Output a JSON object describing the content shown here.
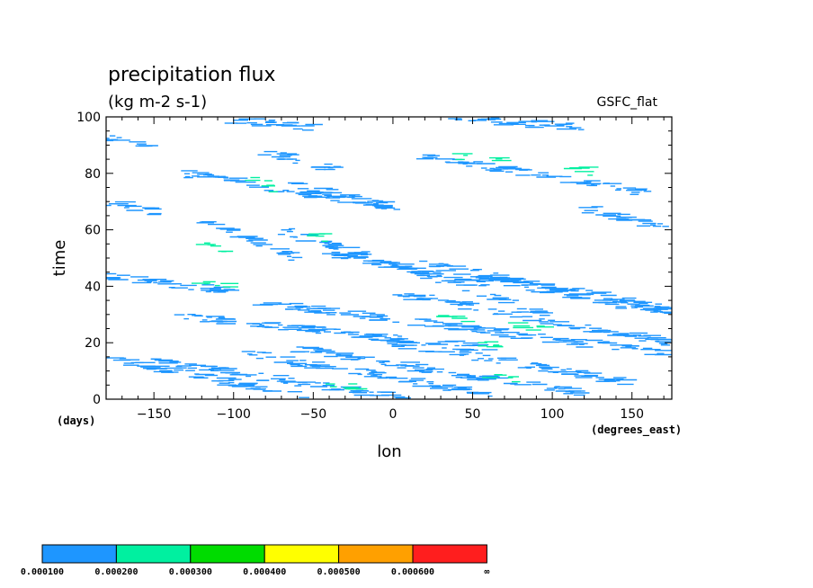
{
  "chart_data": {
    "type": "heatmap",
    "title": "precipitation flux",
    "units": "(kg m-2 s-1)",
    "source_label": "GSFC_flat",
    "xlabel": "lon",
    "ylabel": "time",
    "x_units": "(degrees_east)",
    "y_units": "(days)",
    "xlim": [
      -180,
      175
    ],
    "ylim": [
      0,
      100
    ],
    "x_ticks": [
      -150,
      -100,
      -50,
      0,
      50,
      100,
      150
    ],
    "x_tick_labels": [
      "−150",
      "−100",
      "−50",
      "0",
      "50",
      "100",
      "150"
    ],
    "y_ticks": [
      0,
      20,
      40,
      60,
      80,
      100
    ],
    "y_tick_labels": [
      "0",
      "20",
      "40",
      "60",
      "80",
      "100"
    ],
    "grid": false,
    "colorbar": {
      "colors": [
        "#1e96ff",
        "#00f0a0",
        "#00dc00",
        "#ffff00",
        "#ffa000",
        "#ff1e1e"
      ],
      "levels": [
        "0.000100",
        "0.000200",
        "0.000300",
        "0.000400",
        "0.000500",
        "0.000600",
        "∞"
      ]
    },
    "features": [
      {
        "lon0": -180,
        "t0": 15,
        "lon1": -50,
        "t1": 0,
        "level": 0
      },
      {
        "lon0": -150,
        "t0": 14,
        "lon1": 10,
        "t1": 0,
        "level": 0
      },
      {
        "lon0": -90,
        "t0": 16,
        "lon1": 60,
        "t1": 2,
        "level": 0
      },
      {
        "lon0": -60,
        "t0": 18,
        "lon1": 120,
        "t1": 2,
        "level": 0
      },
      {
        "lon0": -20,
        "t0": 22,
        "lon1": 150,
        "t1": 6,
        "level": 0
      },
      {
        "lon0": -140,
        "t0": 30,
        "lon1": 60,
        "t1": 18,
        "level": 0
      },
      {
        "lon0": -80,
        "t0": 34,
        "lon1": 175,
        "t1": 16,
        "level": 0
      },
      {
        "lon0": 0,
        "t0": 38,
        "lon1": 175,
        "t1": 20,
        "level": 0
      },
      {
        "lon0": -180,
        "t0": 44,
        "lon1": -100,
        "t1": 38,
        "level": 0
      },
      {
        "lon0": -120,
        "t0": 64,
        "lon1": -60,
        "t1": 50,
        "level": 0
      },
      {
        "lon0": -70,
        "t0": 60,
        "lon1": 100,
        "t1": 30,
        "level": 0
      },
      {
        "lon0": -40,
        "t0": 52,
        "lon1": 60,
        "t1": 40,
        "level": 0
      },
      {
        "lon0": 20,
        "t0": 48,
        "lon1": 175,
        "t1": 32,
        "level": 0
      },
      {
        "lon0": 50,
        "t0": 44,
        "lon1": 175,
        "t1": 30,
        "level": 0
      },
      {
        "lon0": -130,
        "t0": 80,
        "lon1": 0,
        "t1": 68,
        "level": 0
      },
      {
        "lon0": -80,
        "t0": 88,
        "lon1": -30,
        "t1": 80,
        "level": 0
      },
      {
        "lon0": -60,
        "t0": 76,
        "lon1": 0,
        "t1": 68,
        "level": 0
      },
      {
        "lon0": 20,
        "t0": 86,
        "lon1": 160,
        "t1": 73,
        "level": 0
      },
      {
        "lon0": 120,
        "t0": 68,
        "lon1": 175,
        "t1": 60,
        "level": 0
      },
      {
        "lon0": -180,
        "t0": 93,
        "lon1": -150,
        "t1": 90,
        "level": 0
      },
      {
        "lon0": -100,
        "t0": 99,
        "lon1": -50,
        "t1": 96,
        "level": 0
      },
      {
        "lon0": 40,
        "t0": 100,
        "lon1": 120,
        "t1": 96,
        "level": 0
      },
      {
        "lon0": -180,
        "t0": 70,
        "lon1": -150,
        "t1": 66,
        "level": 0
      },
      {
        "lon0": -125,
        "t0": 57,
        "lon1": -100,
        "t1": 52,
        "level": 1
      },
      {
        "lon0": -90,
        "t0": 78,
        "lon1": -70,
        "t1": 74,
        "level": 1
      },
      {
        "lon0": -60,
        "t0": 59,
        "lon1": -40,
        "t1": 57,
        "level": 1
      },
      {
        "lon0": 30,
        "t0": 30,
        "lon1": 50,
        "t1": 28,
        "level": 1
      },
      {
        "lon0": 40,
        "t0": 86,
        "lon1": 70,
        "t1": 84,
        "level": 1
      },
      {
        "lon0": 50,
        "t0": 20,
        "lon1": 70,
        "t1": 18,
        "level": 1
      },
      {
        "lon0": 60,
        "t0": 9,
        "lon1": 80,
        "t1": 7,
        "level": 1
      },
      {
        "lon0": -40,
        "t0": 5,
        "lon1": -20,
        "t1": 4,
        "level": 1
      },
      {
        "lon0": 80,
        "t0": 26,
        "lon1": 100,
        "t1": 24,
        "level": 1
      },
      {
        "lon0": -120,
        "t0": 42,
        "lon1": -100,
        "t1": 40,
        "level": 1
      },
      {
        "lon0": 110,
        "t0": 82,
        "lon1": 130,
        "t1": 80,
        "level": 1
      }
    ]
  }
}
